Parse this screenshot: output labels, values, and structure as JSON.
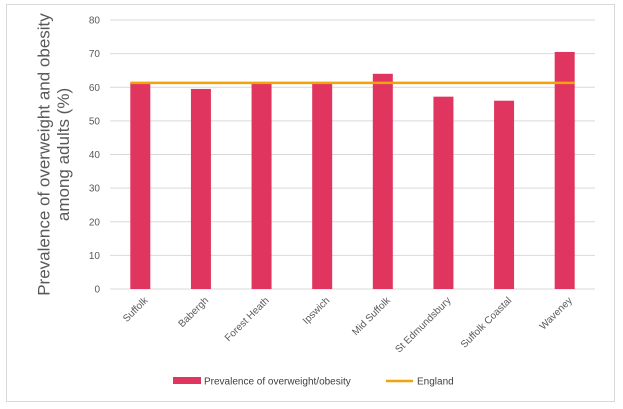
{
  "chart_data": {
    "type": "bar",
    "categories": [
      "Suffolk",
      "Babergh",
      "Forest Heath",
      "Ipswich",
      "Mid Suffolk",
      "St Edmundsbury",
      "Suffolk Coastal",
      "Waveney"
    ],
    "series": [
      {
        "name": "Prevalence of overweight/obesity",
        "type": "bar",
        "color": "#e0355f",
        "values": [
          61.5,
          59.5,
          61.5,
          61.5,
          64,
          57.2,
          56,
          70.5
        ]
      },
      {
        "name": "England",
        "type": "line",
        "color": "#f0a30a",
        "values": [
          61.3,
          61.3,
          61.3,
          61.3,
          61.3,
          61.3,
          61.3,
          61.3
        ]
      }
    ],
    "ylabel": [
      "Prevalence of overweight and obesity",
      "among adults (%)"
    ],
    "ylim": [
      0,
      80
    ],
    "yticks": [
      "0",
      "10",
      "20",
      "30",
      "40",
      "50",
      "60",
      "70",
      "80"
    ],
    "grid": true,
    "legend_position": "bottom"
  }
}
